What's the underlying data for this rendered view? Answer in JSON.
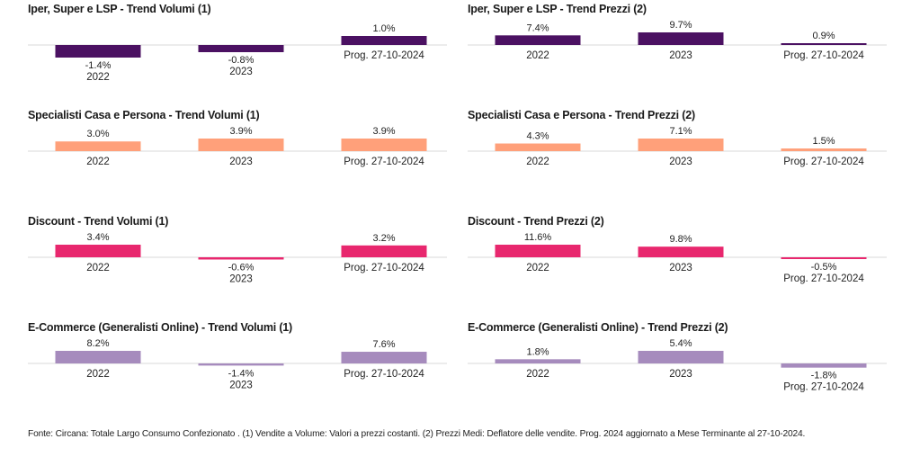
{
  "chart_data": [
    {
      "type": "bar",
      "title": "Iper, Super e LSP - Trend Volumi (1)",
      "categories": [
        "2022",
        "2023",
        "Prog. 27-10-2024"
      ],
      "values": [
        -1.4,
        -0.8,
        1.0
      ],
      "value_labels": [
        "-1.4%",
        "-0.8%",
        "1.0%"
      ],
      "color": "#4b1162"
    },
    {
      "type": "bar",
      "title": "Iper, Super e LSP - Trend Prezzi (2)",
      "categories": [
        "2022",
        "2023",
        "Prog. 27-10-2024"
      ],
      "values": [
        7.4,
        9.7,
        0.9
      ],
      "value_labels": [
        "7.4%",
        "9.7%",
        "0.9%"
      ],
      "color": "#4b1162"
    },
    {
      "type": "bar",
      "title": "Specialisti Casa e Persona - Trend Volumi (1)",
      "categories": [
        "2022",
        "2023",
        "Prog. 27-10-2024"
      ],
      "values": [
        3.0,
        3.9,
        3.9
      ],
      "value_labels": [
        "3.0%",
        "3.9%",
        "3.9%"
      ],
      "color": "#ffa07a"
    },
    {
      "type": "bar",
      "title": "Specialisti Casa e Persona - Trend Prezzi (2)",
      "categories": [
        "2022",
        "2023",
        "Prog. 27-10-2024"
      ],
      "values": [
        4.3,
        7.1,
        1.5
      ],
      "value_labels": [
        "4.3%",
        "7.1%",
        "1.5%"
      ],
      "color": "#ffa07a"
    },
    {
      "type": "bar",
      "title": "Discount - Trend Volumi (1)",
      "categories": [
        "2022",
        "2023",
        "Prog. 27-10-2024"
      ],
      "values": [
        3.4,
        -0.6,
        3.2
      ],
      "value_labels": [
        "3.4%",
        "-0.6%",
        "3.2%"
      ],
      "color": "#e8276e"
    },
    {
      "type": "bar",
      "title": "Discount - Trend Prezzi (2)",
      "categories": [
        "2022",
        "2023",
        "Prog. 27-10-2024"
      ],
      "values": [
        11.6,
        9.8,
        -0.5
      ],
      "value_labels": [
        "11.6%",
        "9.8%",
        "-0.5%"
      ],
      "color": "#e8276e"
    },
    {
      "type": "bar",
      "title": "E-Commerce (Generalisti Online) - Trend Volumi (1)",
      "categories": [
        "2022",
        "2023",
        "Prog. 27-10-2024"
      ],
      "values": [
        8.2,
        -1.4,
        7.6
      ],
      "value_labels": [
        "8.2%",
        "-1.4%",
        "7.6%"
      ],
      "color": "#a68bbd"
    },
    {
      "type": "bar",
      "title": "E-Commerce (Generalisti Online) - Trend Prezzi (2)",
      "categories": [
        "2022",
        "2023",
        "Prog. 27-10-2024"
      ],
      "values": [
        1.8,
        5.4,
        -1.8
      ],
      "value_labels": [
        "1.8%",
        "5.4%",
        "-1.8%"
      ],
      "color": "#a68bbd"
    }
  ],
  "footnote": "Fonte: Circana: Totale Largo Consumo Confezionato . (1) Vendite a Volume: Valori a prezzi costanti. (2) Prezzi Medi: Deflatore delle vendite. Prog. 2024 aggiornato a Mese Terminante al 27-10-2024."
}
